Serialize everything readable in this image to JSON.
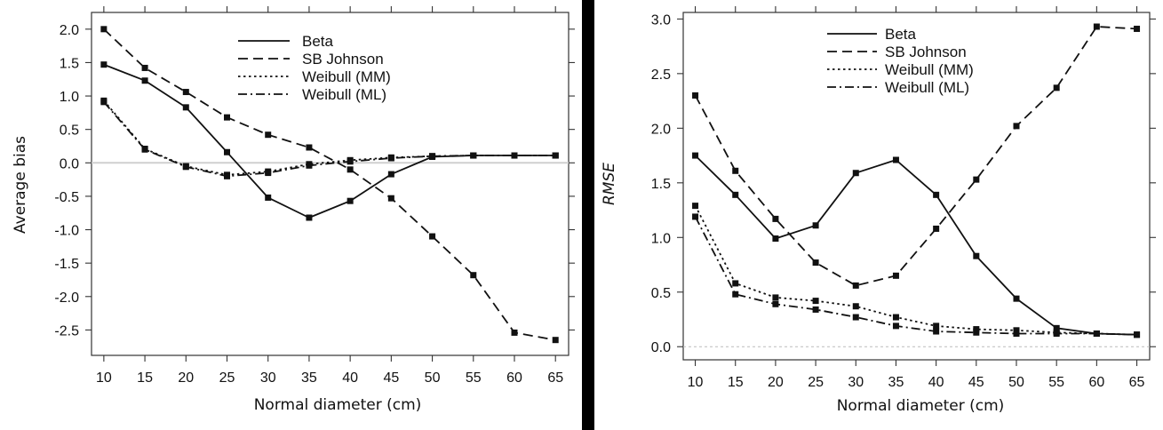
{
  "chart_data": [
    {
      "type": "line",
      "title": "",
      "xlabel": "Normal diameter (cm)",
      "ylabel": "Average bias",
      "ylabel_italic": false,
      "x": [
        10,
        15,
        20,
        25,
        30,
        35,
        40,
        45,
        50,
        55,
        60,
        65
      ],
      "x_ticks": [
        "10",
        "15",
        "20",
        "25",
        "30",
        "35",
        "40",
        "45",
        "50",
        "55",
        "60",
        "65"
      ],
      "ylim": [
        -2.88,
        2.25
      ],
      "y_ticks": [
        "2.0",
        "1.5",
        "1.0",
        "0.5",
        "0.0",
        "-0.5",
        "-1.0",
        "-1.5",
        "-2.0",
        "-2.5"
      ],
      "y_tick_values": [
        2.0,
        1.5,
        1.0,
        0.5,
        0.0,
        -0.5,
        -1.0,
        -1.5,
        -2.0,
        -2.5
      ],
      "reference_line": 0.0,
      "legend_position": "top-center",
      "series": [
        {
          "name": "Beta",
          "style": "solid",
          "values": [
            1.47,
            1.23,
            0.83,
            0.16,
            -0.52,
            -0.82,
            -0.57,
            -0.17,
            0.09,
            0.11,
            0.11,
            0.11
          ]
        },
        {
          "name": "SB Johnson",
          "style": "dashed",
          "values": [
            2.0,
            1.42,
            1.06,
            0.68,
            0.42,
            0.23,
            -0.1,
            -0.53,
            -1.1,
            -1.68,
            -2.54,
            -2.65
          ]
        },
        {
          "name": "Weibull (MM)",
          "style": "dotted",
          "values": [
            0.93,
            0.21,
            -0.05,
            -0.18,
            -0.13,
            -0.02,
            0.04,
            0.08,
            0.1,
            0.11,
            0.11,
            0.11
          ]
        },
        {
          "name": "Weibull (ML)",
          "style": "dashdot",
          "values": [
            0.91,
            0.2,
            -0.06,
            -0.2,
            -0.15,
            -0.04,
            0.02,
            0.07,
            0.1,
            0.11,
            0.11,
            0.11
          ]
        }
      ]
    },
    {
      "type": "line",
      "title": "",
      "xlabel": "Normal diameter (cm)",
      "ylabel": "RMSE",
      "ylabel_italic": true,
      "x": [
        10,
        15,
        20,
        25,
        30,
        35,
        40,
        45,
        50,
        55,
        60,
        65
      ],
      "x_ticks": [
        "10",
        "15",
        "20",
        "25",
        "30",
        "35",
        "40",
        "45",
        "50",
        "55",
        "60",
        "65"
      ],
      "ylim": [
        -0.12,
        3.06
      ],
      "y_ticks": [
        "3.0",
        "2.5",
        "2.0",
        "1.5",
        "1.0",
        "0.5",
        "0.0"
      ],
      "y_tick_values": [
        3.0,
        2.5,
        2.0,
        1.5,
        1.0,
        0.5,
        0.0
      ],
      "reference_line": 0.0,
      "legend_position": "top-center",
      "series": [
        {
          "name": "Beta",
          "style": "solid",
          "values": [
            1.75,
            1.39,
            0.99,
            1.11,
            1.59,
            1.71,
            1.39,
            0.83,
            0.44,
            0.17,
            0.12,
            0.11
          ]
        },
        {
          "name": "SB Johnson",
          "style": "dashed",
          "values": [
            2.3,
            1.61,
            1.17,
            0.77,
            0.56,
            0.65,
            1.08,
            1.53,
            2.02,
            2.37,
            2.93,
            2.91
          ]
        },
        {
          "name": "Weibull (MM)",
          "style": "dotted",
          "values": [
            1.29,
            0.58,
            0.45,
            0.42,
            0.37,
            0.27,
            0.19,
            0.16,
            0.15,
            0.13,
            0.12,
            0.11
          ]
        },
        {
          "name": "Weibull (ML)",
          "style": "dashdot",
          "values": [
            1.19,
            0.48,
            0.39,
            0.34,
            0.27,
            0.19,
            0.14,
            0.13,
            0.12,
            0.12,
            0.12,
            0.11
          ]
        }
      ]
    }
  ]
}
